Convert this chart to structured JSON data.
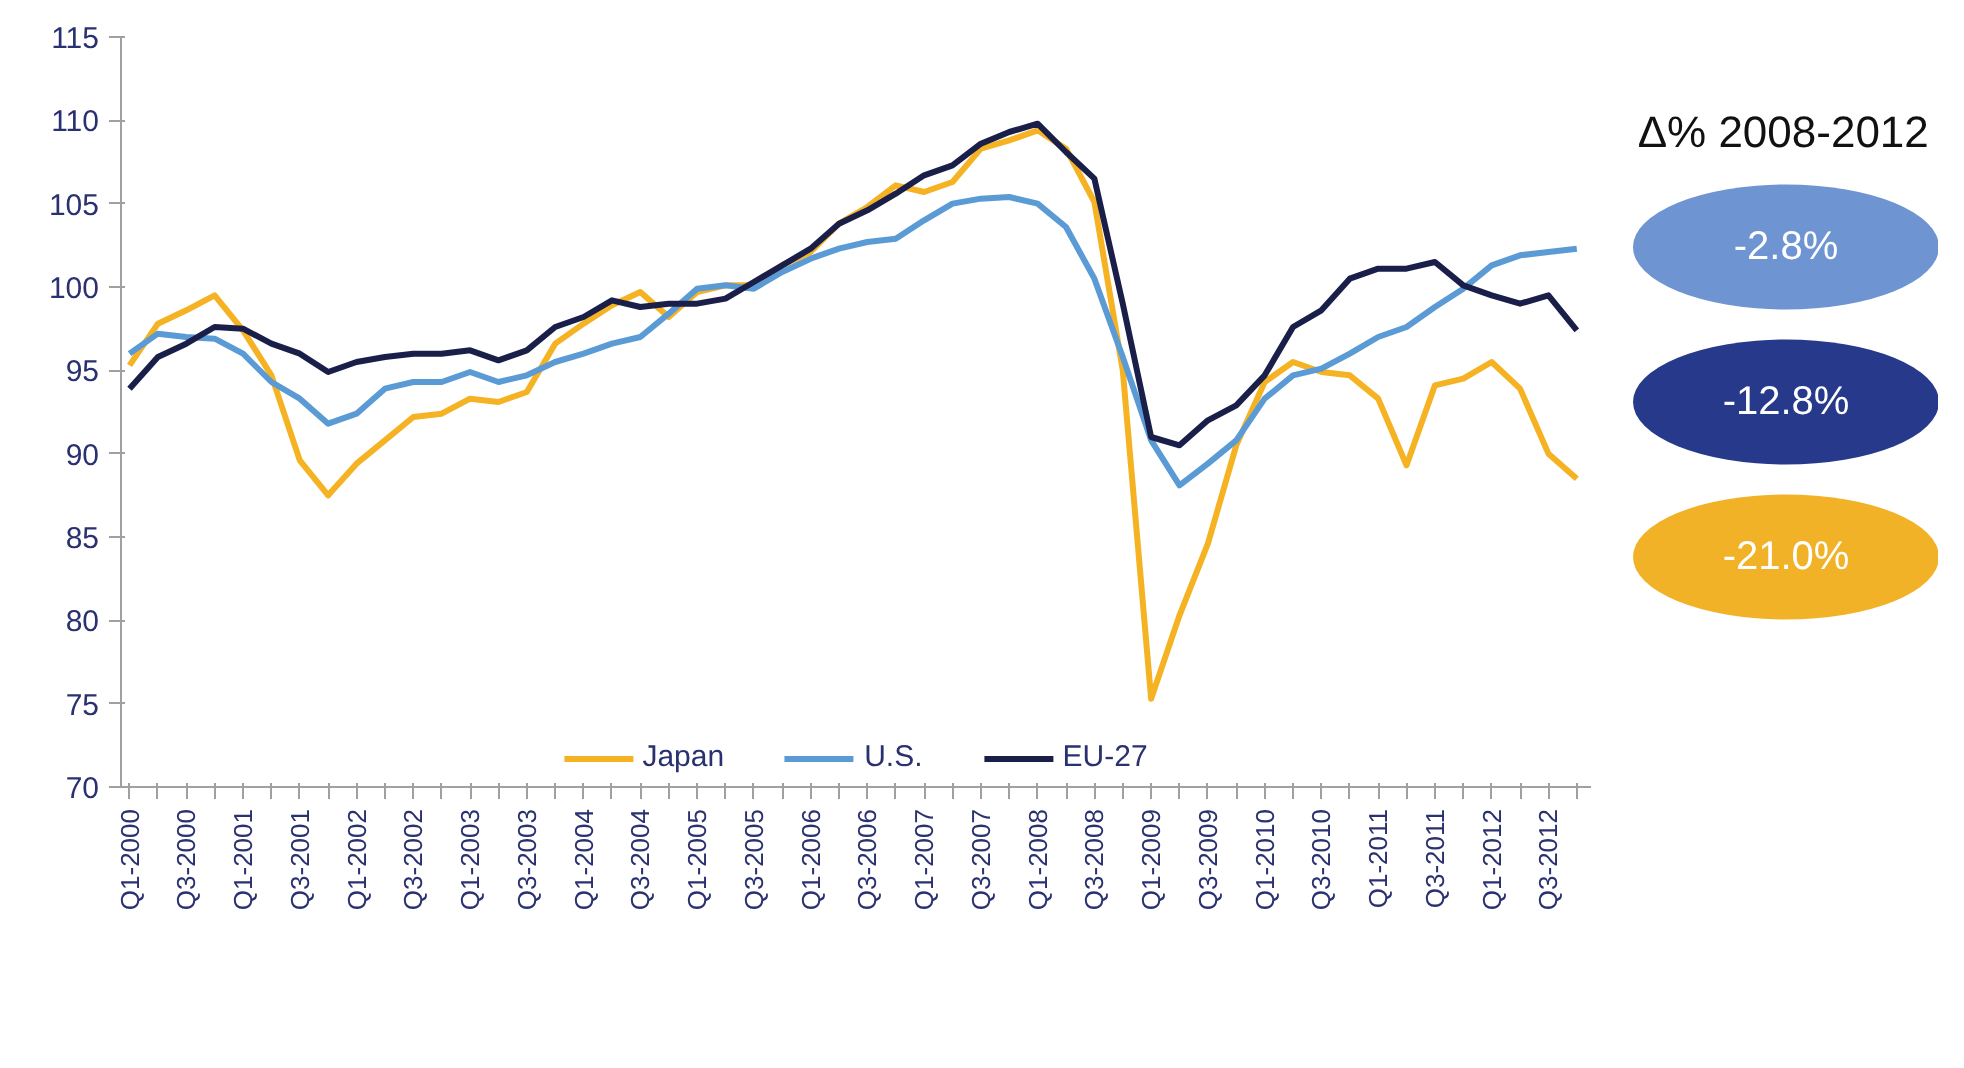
{
  "chart_data": {
    "type": "line",
    "categories": [
      "Q1-2000",
      null,
      "Q3-2000",
      null,
      "Q1-2001",
      null,
      "Q3-2001",
      null,
      "Q1-2002",
      null,
      "Q3-2002",
      null,
      "Q1-2003",
      null,
      "Q3-2003",
      null,
      "Q1-2004",
      null,
      "Q3-2004",
      null,
      "Q1-2005",
      null,
      "Q3-2005",
      null,
      "Q1-2006",
      null,
      "Q3-2006",
      null,
      "Q1-2007",
      null,
      "Q3-2007",
      null,
      "Q1-2008",
      null,
      "Q3-2008",
      null,
      "Q1-2009",
      null,
      "Q3-2009",
      null,
      "Q1-2010",
      null,
      "Q3-2010",
      null,
      "Q1-2011",
      null,
      "Q3-2011",
      null,
      "Q1-2012",
      null,
      "Q3-2012",
      null
    ],
    "series": [
      {
        "name": "Japan",
        "color": "#f5b324",
        "values": [
          95.3,
          97.8,
          98.6,
          99.5,
          97.4,
          94.7,
          89.6,
          87.5,
          89.4,
          90.8,
          92.2,
          92.4,
          93.3,
          93.1,
          93.7,
          96.6,
          97.8,
          98.9,
          99.7,
          98.2,
          99.7,
          100.1,
          100.1,
          101.3,
          102.1,
          103.8,
          104.8,
          106.1,
          105.7,
          106.3,
          108.3,
          108.8,
          109.4,
          108.3,
          105.1,
          95.0,
          75.3,
          80.3,
          84.6,
          90.5,
          94.3,
          95.5,
          94.9,
          94.7,
          93.3,
          89.3,
          94.1,
          94.5,
          95.5,
          93.9,
          90.0,
          88.5
        ]
      },
      {
        "name": "U.S.",
        "color": "#5b9bd5",
        "values": [
          96.0,
          97.2,
          97.0,
          96.9,
          96.0,
          94.3,
          93.3,
          91.8,
          92.4,
          93.9,
          94.3,
          94.3,
          94.9,
          94.3,
          94.7,
          95.5,
          96.0,
          96.6,
          97.0,
          98.4,
          99.9,
          100.1,
          99.9,
          100.9,
          101.7,
          102.3,
          102.7,
          102.9,
          104.0,
          105.0,
          105.3,
          105.4,
          105.0,
          103.6,
          100.5,
          95.8,
          90.8,
          88.1,
          89.4,
          90.8,
          93.3,
          94.7,
          95.1,
          96.0,
          97.0,
          97.6,
          98.8,
          99.9,
          101.3,
          101.9,
          102.1,
          102.3
        ]
      },
      {
        "name": "EU-27",
        "color": "#1a1f4a",
        "values": [
          93.9,
          95.8,
          96.6,
          97.6,
          97.5,
          96.6,
          96.0,
          94.9,
          95.5,
          95.8,
          96.0,
          96.0,
          96.2,
          95.6,
          96.2,
          97.6,
          98.2,
          99.2,
          98.8,
          99.0,
          99.0,
          99.3,
          100.3,
          101.3,
          102.3,
          103.8,
          104.6,
          105.6,
          106.7,
          107.3,
          108.6,
          109.3,
          109.8,
          108.1,
          106.5,
          99.0,
          91.0,
          90.5,
          92.0,
          92.9,
          94.7,
          97.6,
          98.6,
          100.5,
          101.1,
          101.1,
          101.5,
          100.1,
          99.5,
          99.0,
          99.5,
          97.4
        ]
      }
    ],
    "ylim": [
      70,
      115
    ],
    "yticks": [
      70,
      75,
      80,
      85,
      90,
      95,
      100,
      105,
      110,
      115
    ],
    "grid": false,
    "legend": "bottom",
    "annotations": [
      "Δ% 2008-2012",
      "-2.8%",
      "-12.8%",
      "-21.0%"
    ]
  }
}
